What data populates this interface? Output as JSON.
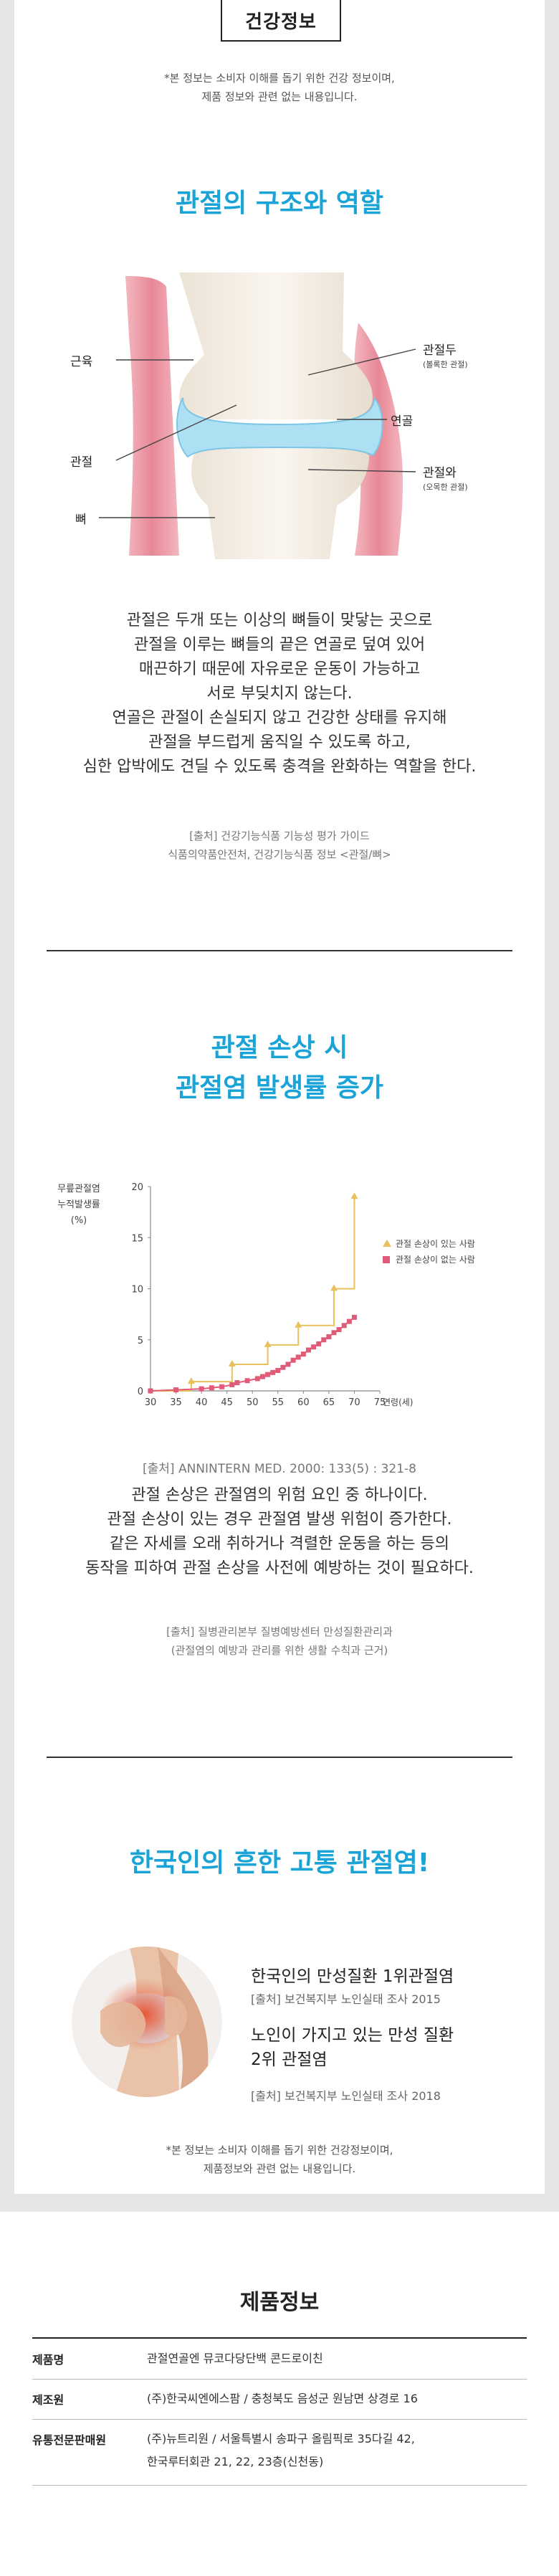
{
  "header": {
    "title": "건강정보",
    "disclaimer_1": "*본 정보는 소비자 이해를 돕기 위한 건강 정보이며,",
    "disclaimer_2": "제품 정보와 관련 없는 내용입니다."
  },
  "section1": {
    "heading": "관절의 구조와 역할",
    "labels": {
      "muscle": "근육",
      "joint": "관절",
      "bone": "뼈",
      "joint_head": "관절두",
      "joint_head_sub": "(볼록한 관절)",
      "cartilage": "연골",
      "joint_socket": "관절와",
      "joint_socket_sub": "(오목한 관절)"
    },
    "body": [
      "관절은 두개 또는 이상의 뼈들이 맞닿는 곳으로",
      "관절을 이루는 뼈들의 끝은 연골로 덮여 있어",
      "매끈하기 때문에 자유로운 운동이 가능하고",
      "서로 부딪치지 않는다.",
      "연골은 관절이 손실되지 않고 건강한 상태를 유지해",
      "관절을 부드럽게 움직일 수 있도록 하고,",
      "심한 압박에도 견딜 수 있도록 충격을 완화하는 역할을 한다."
    ],
    "source_1": "[출처] 건강기능식품 기능성 평가 가이드",
    "source_2": "식품의약품안전처, 건강기능식품 정보 <관절/뼈>"
  },
  "section2": {
    "heading_1": "관절 손상 시",
    "heading_2": "관절염 발생률 증가",
    "source_chart": "[출처] ANNINTERN MED. 2000: 133(5) : 321-8",
    "body": [
      "관절 손상은 관절염의 위험 요인 중 하나이다.",
      "관절 손상이 있는 경우 관절염 발생 위험이 증가한다.",
      "같은 자세를 오래 취하거나 격렬한 운동을 하는 등의",
      "동작을 피하여 관절 손상을 사전에 예방하는 것이 필요하다."
    ],
    "source_1": "[출처] 질병관리본부 질병예방센터 만성질환관리과",
    "source_2": "(관절염의 예방과 관리를 위한 생활 수칙과 근거)"
  },
  "chart_data": {
    "type": "line",
    "ylabel_1": "무릎관절염",
    "ylabel_2": "누적발생률",
    "ylabel_3": "(%)",
    "xlabel": "연령(세)",
    "x_ticks": [
      "30",
      "35",
      "40",
      "45",
      "50",
      "55",
      "60",
      "65",
      "70",
      "75"
    ],
    "y_ticks": [
      "0",
      "5",
      "10",
      "15",
      "20"
    ],
    "xlim": [
      30,
      75
    ],
    "ylim": [
      0,
      20
    ],
    "series": [
      {
        "name": "관절 손상이 있는 사람",
        "color": "#e8c15a",
        "marker": "triangle",
        "x": [
          30,
          38,
          38,
          46,
          46,
          53,
          53,
          59,
          59,
          66,
          66,
          70,
          70
        ],
        "y": [
          0,
          0,
          0.9,
          0.9,
          2.6,
          2.6,
          4.5,
          4.5,
          6.4,
          6.4,
          10,
          10,
          19
        ]
      },
      {
        "name": "관절 손상이 없는 사람",
        "color": "#e05b78",
        "marker": "square",
        "x": [
          30,
          35,
          40,
          42,
          44,
          46,
          47,
          49,
          51,
          52,
          53,
          54,
          55,
          56,
          57,
          58,
          59,
          60,
          61,
          62,
          63,
          64,
          65,
          66,
          67,
          68,
          69,
          70
        ],
        "y": [
          0,
          0.1,
          0.2,
          0.3,
          0.4,
          0.6,
          0.8,
          1.0,
          1.2,
          1.4,
          1.6,
          1.8,
          2.0,
          2.3,
          2.6,
          3.0,
          3.3,
          3.6,
          4.0,
          4.3,
          4.6,
          5.0,
          5.3,
          5.7,
          6.0,
          6.4,
          6.8,
          7.2
        ]
      }
    ]
  },
  "section3": {
    "heading": "한국인의 흔한 고통 관절염!",
    "item1_title": "한국인의 만성질환 1위관절염",
    "item1_source": "[출처] 보건복지부 노인실태 조사 2015",
    "item2_title_1": "노인이 가지고 있는 만성 질환",
    "item2_title_2": "2위 관절염",
    "item2_source": "[출처] 보건복지부 노인실태 조사 2018",
    "disclaimer_1": "*본 정보는 소비자 이해를 돕기 위한 건강정보이며,",
    "disclaimer_2": "제품정보와 관련 없는 내용입니다."
  },
  "product": {
    "title": "제품정보",
    "rows": [
      {
        "key": "제품명",
        "value": "관절연골엔 뮤코다당단백 콘드로이친"
      },
      {
        "key": "제조원",
        "value": "(주)한국씨엔에스팜 / 충청북도 음성군 원남면 상경로 16"
      },
      {
        "key": "유통전문판매원",
        "value": "(주)뉴트리원 / 서울특별시 송파구 올림픽로 35다길 42,",
        "value2": "한국루터회관 21, 22, 23층(신천동)"
      }
    ]
  },
  "colors": {
    "accent": "#1aa3d6",
    "cartilage": "#aee0f3",
    "muscle": "#e8909c"
  }
}
